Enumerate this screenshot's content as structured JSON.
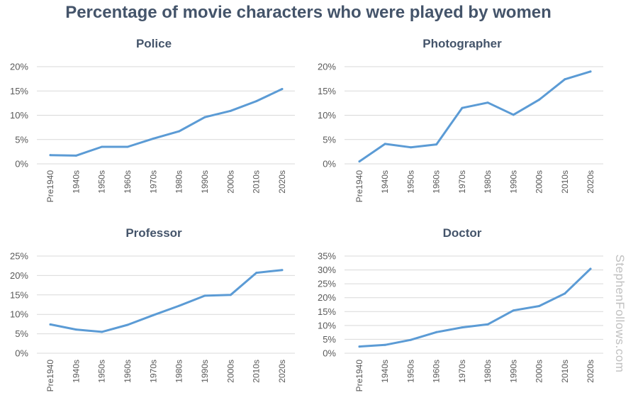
{
  "title": "Percentage of movie characters who were played by women",
  "watermark": "StephenFollows.com",
  "colors": {
    "line": "#5b9bd5",
    "title": "#44546a",
    "grid": "#d9d9d9",
    "tick": "#595959"
  },
  "chart_data": [
    {
      "type": "line",
      "title": "Police",
      "categories": [
        "Pre1940",
        "1940s",
        "1950s",
        "1960s",
        "1970s",
        "1980s",
        "1990s",
        "2000s",
        "2010s",
        "2020s"
      ],
      "values": [
        1.8,
        1.7,
        3.5,
        3.5,
        5.2,
        6.7,
        9.6,
        10.9,
        12.9,
        15.4
      ],
      "yticks": [
        "0%",
        "5%",
        "10%",
        "15%",
        "20%"
      ],
      "ylim": [
        0,
        20
      ],
      "grid": true
    },
    {
      "type": "line",
      "title": "Photographer",
      "categories": [
        "Pre1940",
        "1940s",
        "1950s",
        "1960s",
        "1970s",
        "1980s",
        "1990s",
        "2000s",
        "2010s",
        "2020s"
      ],
      "values": [
        0.5,
        4.1,
        3.4,
        4.0,
        11.5,
        12.6,
        10.1,
        13.2,
        17.4,
        19.0
      ],
      "yticks": [
        "0%",
        "5%",
        "10%",
        "15%",
        "20%"
      ],
      "ylim": [
        0,
        20
      ],
      "grid": true
    },
    {
      "type": "line",
      "title": "Professor",
      "categories": [
        "Pre1940",
        "1940s",
        "1950s",
        "1960s",
        "1970s",
        "1980s",
        "1990s",
        "2000s",
        "2010s",
        "2020s"
      ],
      "values": [
        7.4,
        6.1,
        5.5,
        7.3,
        9.8,
        12.2,
        14.8,
        15.0,
        20.7,
        21.4
      ],
      "yticks": [
        "0%",
        "5%",
        "10%",
        "15%",
        "20%",
        "25%"
      ],
      "ylim": [
        0,
        25
      ],
      "grid": true
    },
    {
      "type": "line",
      "title": "Doctor",
      "categories": [
        "Pre1940",
        "1940s",
        "1950s",
        "1960s",
        "1970s",
        "1980s",
        "1990s",
        "2000s",
        "2010s",
        "2020s"
      ],
      "values": [
        2.4,
        3.0,
        4.8,
        7.6,
        9.3,
        10.4,
        15.4,
        17.0,
        21.5,
        30.4
      ],
      "yticks": [
        "0%",
        "5%",
        "10%",
        "15%",
        "20%",
        "25%",
        "30%",
        "35%"
      ],
      "ylim": [
        0,
        35
      ],
      "grid": true
    }
  ]
}
